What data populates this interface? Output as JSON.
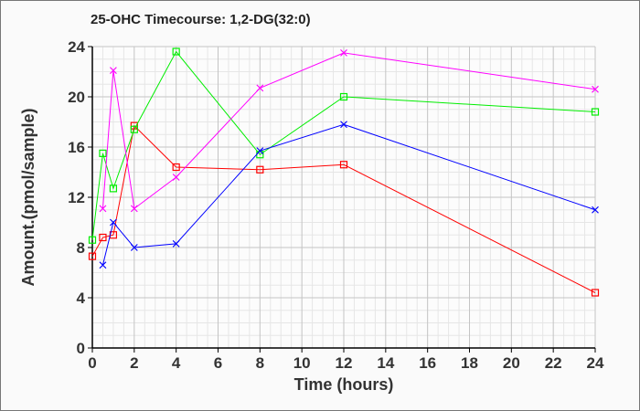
{
  "chart_data": {
    "type": "line",
    "title": "25-OHC Timecourse: 1,2-DG(32:0)",
    "xlabel": "Time (hours)",
    "ylabel": "Amount.(pmol/sample)",
    "xlim": [
      0,
      24
    ],
    "ylim": [
      0,
      24
    ],
    "xticks": [
      0,
      2,
      4,
      6,
      8,
      10,
      12,
      14,
      16,
      18,
      20,
      22,
      24
    ],
    "yticks": [
      0,
      4,
      8,
      12,
      16,
      20,
      24
    ],
    "grid": true,
    "series": [
      {
        "name": "red",
        "color": "#ff0000",
        "marker": "square",
        "x": [
          0,
          0.5,
          1,
          2,
          4,
          8,
          12,
          24
        ],
        "y": [
          7.3,
          8.8,
          9.0,
          17.7,
          14.4,
          14.2,
          14.6,
          4.4
        ]
      },
      {
        "name": "green",
        "color": "#00ee00",
        "marker": "square",
        "x": [
          0,
          0.5,
          1,
          2,
          4,
          8,
          12,
          24
        ],
        "y": [
          8.6,
          15.5,
          12.7,
          17.4,
          23.6,
          15.4,
          20.0,
          18.8
        ]
      },
      {
        "name": "magenta",
        "color": "#ff00ff",
        "marker": "x",
        "x": [
          0.5,
          1,
          2,
          4,
          8,
          12,
          24
        ],
        "y": [
          11.1,
          22.1,
          11.1,
          13.6,
          20.7,
          23.5,
          20.6
        ]
      },
      {
        "name": "blue",
        "color": "#0000ff",
        "marker": "x",
        "x": [
          0.5,
          1,
          2,
          4,
          8,
          12,
          24
        ],
        "y": [
          6.6,
          10.0,
          8.0,
          8.3,
          15.7,
          17.8,
          11.0
        ]
      }
    ]
  }
}
